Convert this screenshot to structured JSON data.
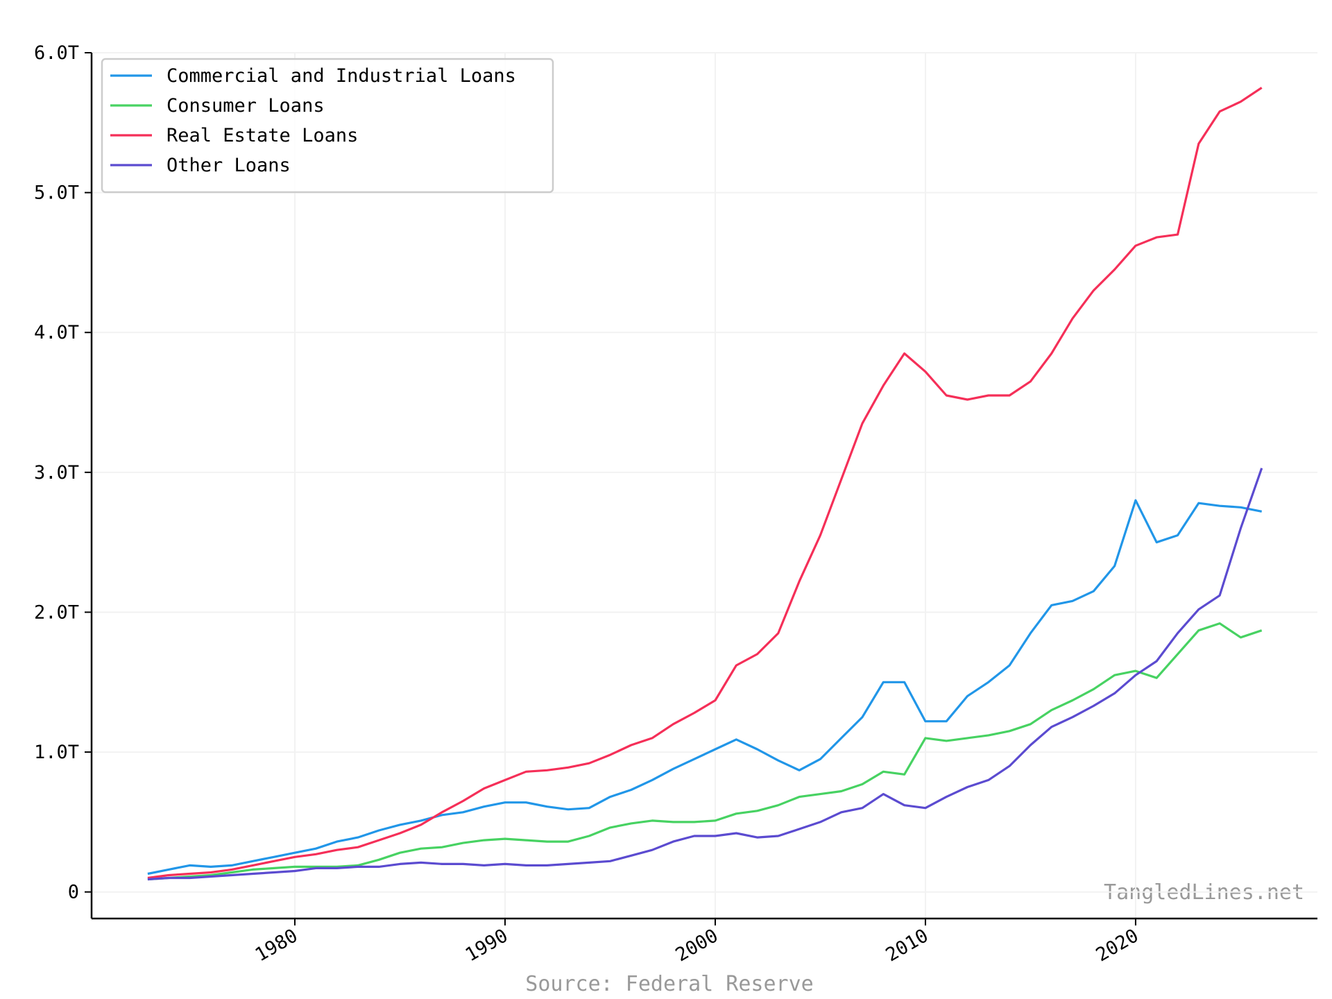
{
  "chart_data": {
    "type": "line",
    "source": "Source: Federal Reserve",
    "watermark": "TangledLines.net",
    "x": [
      1973,
      1974,
      1975,
      1976,
      1977,
      1978,
      1979,
      1980,
      1981,
      1982,
      1983,
      1984,
      1985,
      1986,
      1987,
      1988,
      1989,
      1990,
      1991,
      1992,
      1993,
      1994,
      1995,
      1996,
      1997,
      1998,
      1999,
      2000,
      2001,
      2002,
      2003,
      2004,
      2005,
      2006,
      2007,
      2008,
      2009,
      2010,
      2011,
      2012,
      2013,
      2014,
      2015,
      2016,
      2017,
      2018,
      2019,
      2020,
      2021,
      2022,
      2023,
      2024,
      2025,
      2026
    ],
    "xlim": [
      1970.33,
      2028.65
    ],
    "xticks": [
      1980,
      1990,
      2000,
      2010,
      2020
    ],
    "ylim": [
      -190000000000.0,
      6000000000000.0
    ],
    "yticks": [
      {
        "value": 0,
        "label": "0"
      },
      {
        "value": 1000000000000.0,
        "label": "1.0T"
      },
      {
        "value": 2000000000000.0,
        "label": "2.0T"
      },
      {
        "value": 3000000000000.0,
        "label": "3.0T"
      },
      {
        "value": 4000000000000.0,
        "label": "4.0T"
      },
      {
        "value": 5000000000000.0,
        "label": "5.0T"
      },
      {
        "value": 6000000000000.0,
        "label": "6.0T"
      }
    ],
    "grid": true,
    "legend": "upper left",
    "series": [
      {
        "name": "Commercial and Industrial Loans",
        "color": "#2196e8",
        "values": [
          130000000000.0,
          160000000000.0,
          190000000000.0,
          180000000000.0,
          190000000000.0,
          220000000000.0,
          250000000000.0,
          280000000000.0,
          310000000000.0,
          360000000000.0,
          390000000000.0,
          440000000000.0,
          480000000000.0,
          510000000000.0,
          550000000000.0,
          570000000000.0,
          610000000000.0,
          640000000000.0,
          640000000000.0,
          610000000000.0,
          590000000000.0,
          600000000000.0,
          680000000000.0,
          730000000000.0,
          800000000000.0,
          880000000000.0,
          950000000000.0,
          1020000000000.0,
          1090000000000.0,
          1020000000000.0,
          940000000000.0,
          870000000000.0,
          950000000000.0,
          1100000000000.0,
          1250000000000.0,
          1500000000000.0,
          1500000000000.0,
          1220000000000.0,
          1220000000000.0,
          1400000000000.0,
          1500000000000.0,
          1620000000000.0,
          1850000000000.0,
          2050000000000.0,
          2080000000000.0,
          2150000000000.0,
          2330000000000.0,
          2800000000000.0,
          2500000000000.0,
          2550000000000.0,
          2780000000000.0,
          2760000000000.0,
          2750000000000.0,
          2720000000000.0
        ]
      },
      {
        "name": "Consumer Loans",
        "color": "#47d262",
        "values": [
          90000000000.0,
          100000000000.0,
          110000000000.0,
          120000000000.0,
          140000000000.0,
          160000000000.0,
          170000000000.0,
          180000000000.0,
          180000000000.0,
          180000000000.0,
          190000000000.0,
          230000000000.0,
          280000000000.0,
          310000000000.0,
          320000000000.0,
          350000000000.0,
          370000000000.0,
          380000000000.0,
          370000000000.0,
          360000000000.0,
          360000000000.0,
          400000000000.0,
          460000000000.0,
          490000000000.0,
          510000000000.0,
          500000000000.0,
          500000000000.0,
          510000000000.0,
          560000000000.0,
          580000000000.0,
          620000000000.0,
          680000000000.0,
          700000000000.0,
          720000000000.0,
          770000000000.0,
          860000000000.0,
          840000000000.0,
          1100000000000.0,
          1080000000000.0,
          1100000000000.0,
          1120000000000.0,
          1150000000000.0,
          1200000000000.0,
          1300000000000.0,
          1370000000000.0,
          1450000000000.0,
          1550000000000.0,
          1580000000000.0,
          1530000000000.0,
          1700000000000.0,
          1870000000000.0,
          1920000000000.0,
          1820000000000.0,
          1870000000000.0
        ]
      },
      {
        "name": "Real Estate Loans",
        "color": "#f52f58",
        "values": [
          100000000000.0,
          120000000000.0,
          130000000000.0,
          140000000000.0,
          160000000000.0,
          190000000000.0,
          220000000000.0,
          250000000000.0,
          270000000000.0,
          300000000000.0,
          320000000000.0,
          370000000000.0,
          420000000000.0,
          480000000000.0,
          570000000000.0,
          650000000000.0,
          740000000000.0,
          800000000000.0,
          860000000000.0,
          870000000000.0,
          890000000000.0,
          920000000000.0,
          980000000000.0,
          1050000000000.0,
          1100000000000.0,
          1200000000000.0,
          1280000000000.0,
          1370000000000.0,
          1620000000000.0,
          1700000000000.0,
          1850000000000.0,
          2220000000000.0,
          2550000000000.0,
          2950000000000.0,
          3350000000000.0,
          3620000000000.0,
          3850000000000.0,
          3720000000000.0,
          3550000000000.0,
          3520000000000.0,
          3550000000000.0,
          3550000000000.0,
          3650000000000.0,
          3850000000000.0,
          4100000000000.0,
          4300000000000.0,
          4450000000000.0,
          4620000000000.0,
          4680000000000.0,
          4700000000000.0,
          5350000000000.0,
          5580000000000.0,
          5650000000000.0,
          5750000000000.0
        ]
      },
      {
        "name": "Other Loans",
        "color": "#5b4bd0",
        "values": [
          90000000000.0,
          100000000000.0,
          100000000000.0,
          110000000000.0,
          120000000000.0,
          130000000000.0,
          140000000000.0,
          150000000000.0,
          170000000000.0,
          170000000000.0,
          180000000000.0,
          180000000000.0,
          200000000000.0,
          210000000000.0,
          200000000000.0,
          200000000000.0,
          190000000000.0,
          200000000000.0,
          190000000000.0,
          190000000000.0,
          200000000000.0,
          210000000000.0,
          220000000000.0,
          260000000000.0,
          300000000000.0,
          360000000000.0,
          400000000000.0,
          400000000000.0,
          420000000000.0,
          390000000000.0,
          400000000000.0,
          450000000000.0,
          500000000000.0,
          570000000000.0,
          600000000000.0,
          700000000000.0,
          620000000000.0,
          600000000000.0,
          680000000000.0,
          750000000000.0,
          800000000000.0,
          900000000000.0,
          1050000000000.0,
          1180000000000.0,
          1250000000000.0,
          1330000000000.0,
          1420000000000.0,
          1550000000000.0,
          1650000000000.0,
          1850000000000.0,
          2020000000000.0,
          2120000000000.0,
          2600000000000.0,
          3030000000000.0
        ]
      }
    ]
  }
}
